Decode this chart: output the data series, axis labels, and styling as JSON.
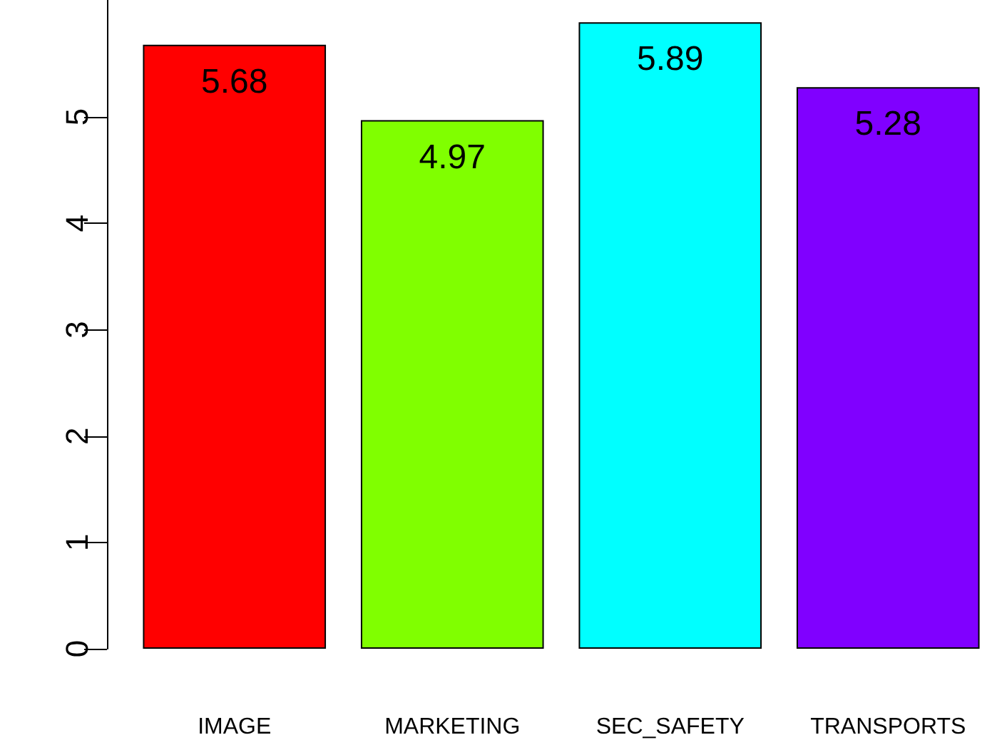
{
  "chart_data": {
    "type": "bar",
    "categories": [
      "IMAGE",
      "MARKETING",
      "SEC_SAFETY",
      "TRANSPORTS"
    ],
    "values": [
      5.68,
      4.97,
      5.89,
      5.28
    ],
    "colors": [
      "#ff0000",
      "#80ff00",
      "#00ffff",
      "#8000ff"
    ],
    "ylim": [
      0,
      6.1
    ],
    "yticks": [
      0,
      1,
      2,
      3,
      4,
      5
    ],
    "data_labels": true,
    "grid": false
  }
}
